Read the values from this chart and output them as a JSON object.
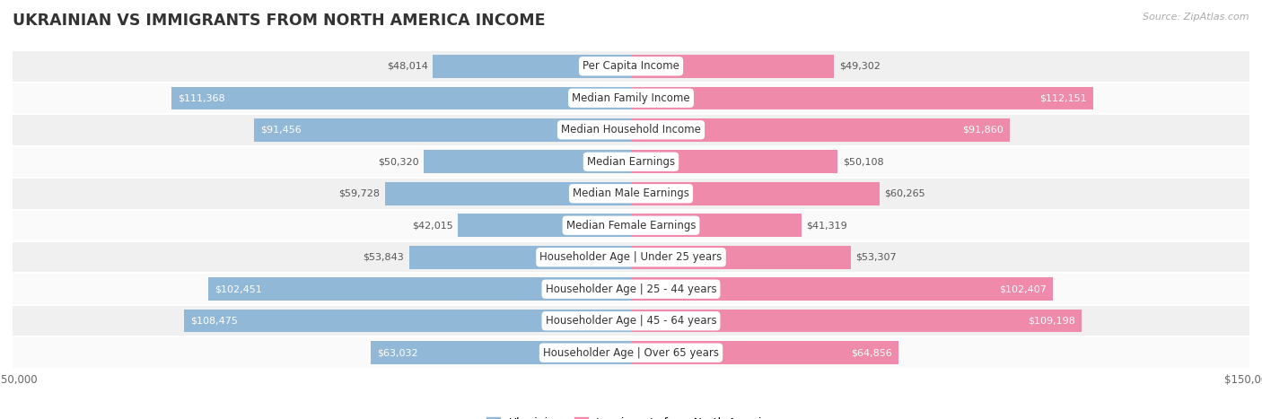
{
  "title": "UKRAINIAN VS IMMIGRANTS FROM NORTH AMERICA INCOME",
  "source": "Source: ZipAtlas.com",
  "categories": [
    "Per Capita Income",
    "Median Family Income",
    "Median Household Income",
    "Median Earnings",
    "Median Male Earnings",
    "Median Female Earnings",
    "Householder Age | Under 25 years",
    "Householder Age | 25 - 44 years",
    "Householder Age | 45 - 64 years",
    "Householder Age | Over 65 years"
  ],
  "ukrainian_values": [
    48014,
    111368,
    91456,
    50320,
    59728,
    42015,
    53843,
    102451,
    108475,
    63032
  ],
  "immigrant_values": [
    49302,
    112151,
    91860,
    50108,
    60265,
    41319,
    53307,
    102407,
    109198,
    64856
  ],
  "ukrainian_labels": [
    "$48,014",
    "$111,368",
    "$91,456",
    "$50,320",
    "$59,728",
    "$42,015",
    "$53,843",
    "$102,451",
    "$108,475",
    "$63,032"
  ],
  "immigrant_labels": [
    "$49,302",
    "$112,151",
    "$91,860",
    "$50,108",
    "$60,265",
    "$41,319",
    "$53,307",
    "$102,407",
    "$109,198",
    "$64,856"
  ],
  "max_value": 150000,
  "ukrainian_color": "#92b8d8",
  "immigrant_color": "#f08aaa",
  "label_threshold": 0.42,
  "bar_height": 0.72,
  "background_color": "#ffffff",
  "row_bg_odd": "#f0f0f0",
  "row_bg_even": "#fafafa",
  "label_inside_color": "#ffffff",
  "label_outside_color": "#555555",
  "category_fontsize": 8.5,
  "label_fontsize": 8.0,
  "title_fontsize": 12.5,
  "source_fontsize": 8,
  "legend_fontsize": 9,
  "xtick_fontsize": 8.5
}
